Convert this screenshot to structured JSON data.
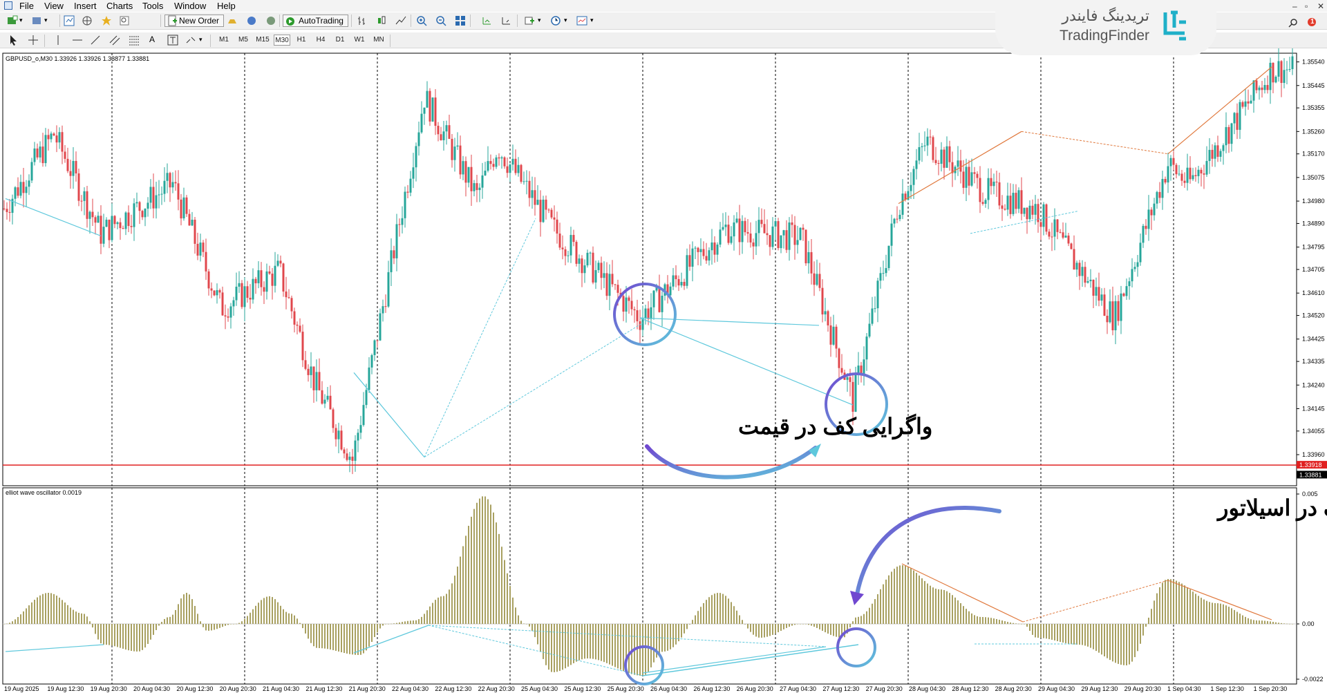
{
  "menu": [
    "File",
    "View",
    "Insert",
    "Charts",
    "Tools",
    "Window",
    "Help"
  ],
  "toolbar": {
    "new_order_label": "New Order",
    "autotrading_label": "AutoTrading",
    "timeframes": [
      "M1",
      "M5",
      "M15",
      "M30",
      "H1",
      "H4",
      "D1",
      "W1",
      "MN"
    ],
    "active_timeframe": "M30"
  },
  "logo": {
    "persian": "تریدینگ فایندر",
    "english": "TradingFinder"
  },
  "notification_count": "1",
  "price_panel": {
    "label": "GBPUSD_o,M30  1.33926 1.33926 1.33877 1.33881",
    "y_ticks": [
      "1.35540",
      "1.35445",
      "1.35355",
      "1.35260",
      "1.35170",
      "1.35075",
      "1.34980",
      "1.34890",
      "1.34795",
      "1.34705",
      "1.34610",
      "1.34520",
      "1.34425",
      "1.34335",
      "1.34240",
      "1.34145",
      "1.34055",
      "1.33960"
    ],
    "y_range": [
      1.33835,
      1.35575
    ],
    "red_line_label": "1.33918",
    "current_price_label": "1.33881",
    "annotation": "واگرایی کف در قیمت"
  },
  "oscillator_panel": {
    "label": "elliot wave oscillator 0.0019",
    "y_ticks": [
      "0.005",
      "0.00",
      "-0.0022"
    ],
    "annotation": "واگرایی کف در اسیلاتور"
  },
  "x_ticks": [
    "19 Aug 2025",
    "19 Aug 12:30",
    "19 Aug 20:30",
    "20 Aug 04:30",
    "20 Aug 12:30",
    "20 Aug 20:30",
    "21 Aug 04:30",
    "21 Aug 12:30",
    "21 Aug 20:30",
    "22 Aug 04:30",
    "22 Aug 12:30",
    "22 Aug 20:30",
    "25 Aug 04:30",
    "25 Aug 12:30",
    "25 Aug 20:30",
    "26 Aug 04:30",
    "26 Aug 12:30",
    "26 Aug 20:30",
    "27 Aug 04:30",
    "27 Aug 12:30",
    "27 Aug 20:30",
    "28 Aug 04:30",
    "28 Aug 12:30",
    "28 Aug 20:30",
    "29 Aug 04:30",
    "29 Aug 12:30",
    "29 Aug 20:30",
    "1 Sep 04:30",
    "1 Sep 12:30",
    "1 Sep 20:30"
  ],
  "colors": {
    "bull": "#26a69a",
    "bear": "#e0474c",
    "histogram": "#a8a060",
    "divergence_cyan": "#5ec8dc",
    "divergence_orange": "#e0783c",
    "circle_purple": "#7048d0",
    "red_line": "#e02020"
  },
  "chart_data": {
    "type": "candlestick",
    "symbol": "GBPUSD_o",
    "timeframe": "M30",
    "ohlc_last": {
      "open": 1.33926,
      "high": 1.33926,
      "low": 1.33877,
      "close": 1.33881
    },
    "horizontal_line": 1.33918,
    "oscillator": {
      "name": "elliot wave oscillator",
      "value": 0.0019,
      "ylim": [
        -0.0022,
        0.005
      ]
    },
    "price_key_points": [
      {
        "x": "19 Aug 2025",
        "y": 1.3495
      },
      {
        "x": "19 Aug 12:30",
        "y": 1.3525
      },
      {
        "x": "19 Aug 20:30",
        "y": 1.3485
      },
      {
        "x": "20 Aug 12:30",
        "y": 1.3505
      },
      {
        "x": "20 Aug 20:30",
        "y": 1.3455
      },
      {
        "x": "21 Aug 04:30",
        "y": 1.347
      },
      {
        "x": "21 Aug 12:30",
        "y": 1.3425
      },
      {
        "x": "22 Aug 04:30",
        "y": 1.3394
      },
      {
        "x": "22 Aug 12:30",
        "y": 1.354
      },
      {
        "x": "22 Aug 20:30",
        "y": 1.35
      },
      {
        "x": "25 Aug 04:30",
        "y": 1.352
      },
      {
        "x": "25 Aug 12:30",
        "y": 1.3487
      },
      {
        "x": "25 Aug 20:30",
        "y": 1.3451
      },
      {
        "x": "26 Aug 12:30",
        "y": 1.3487
      },
      {
        "x": "26 Aug 20:30",
        "y": 1.3483
      },
      {
        "x": "27 Aug 04:30",
        "y": 1.3418
      },
      {
        "x": "27 Aug 20:30",
        "y": 1.3497
      },
      {
        "x": "28 Aug 04:30",
        "y": 1.3522
      },
      {
        "x": "28 Aug 12:30",
        "y": 1.3502
      },
      {
        "x": "28 Aug 20:30",
        "y": 1.3495
      },
      {
        "x": "29 Aug 12:30",
        "y": 1.3451
      },
      {
        "x": "29 Aug 20:30",
        "y": 1.3513
      },
      {
        "x": "1 Sep 04:30",
        "y": 1.3505
      },
      {
        "x": "1 Sep 12:30",
        "y": 1.3535
      },
      {
        "x": "1 Sep 20:30",
        "y": 1.3551
      }
    ]
  }
}
